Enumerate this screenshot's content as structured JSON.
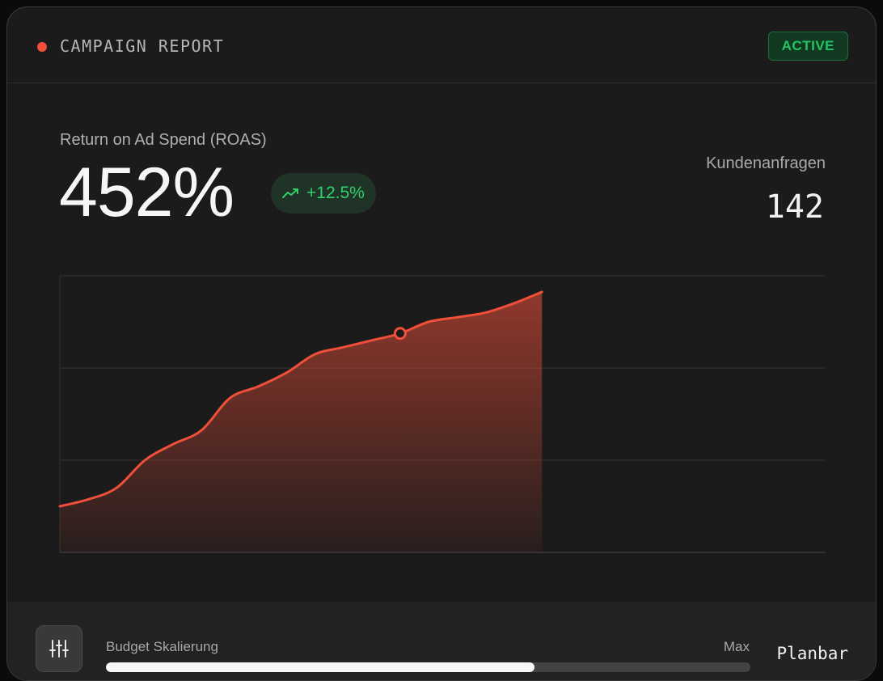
{
  "header": {
    "title": "CAMPAIGN REPORT",
    "status": "ACTIVE"
  },
  "metric": {
    "label": "Return on Ad Spend (ROAS)",
    "value": "452%",
    "trend": "+12.5%",
    "trend_icon": "trending-up-icon"
  },
  "side_metric": {
    "label": "Kundenanfragen",
    "value": "142"
  },
  "colors": {
    "accent": "#f0503a",
    "positive": "#2fd26b",
    "background": "#1b1b1b"
  },
  "chart_data": {
    "type": "area",
    "x": [
      0,
      1,
      2,
      3,
      4,
      5,
      6,
      7,
      8,
      9,
      10,
      11,
      12,
      13,
      14,
      15,
      16,
      17
    ],
    "series": [
      {
        "values": [
          20,
          23,
          28,
          40,
          47,
          53,
          67,
          72,
          78,
          86,
          89,
          92,
          95,
          100,
          102,
          104,
          108,
          113
        ],
        "highlight_index": 12
      }
    ],
    "xlim": [
      0,
      27
    ],
    "ylim": [
      0,
      120
    ],
    "grid": true
  },
  "footer": {
    "settings_icon": "sliders-icon",
    "slider_label": "Budget Skalierung",
    "slider_max": "Max",
    "slider_value": 0.665,
    "planbar": "Planbar"
  }
}
